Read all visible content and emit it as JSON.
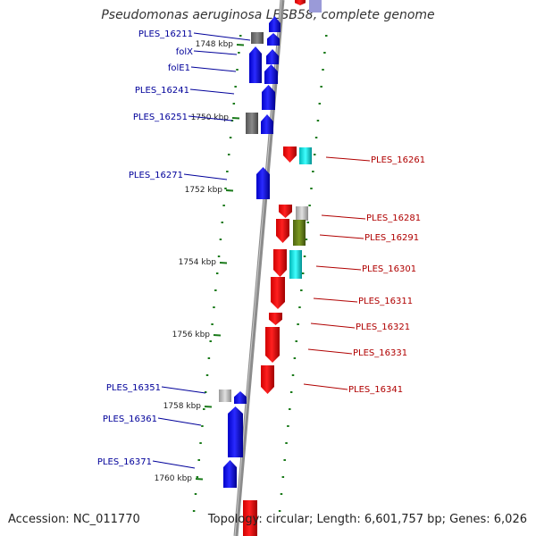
{
  "title": "Pseudomonas aeruginosa LESB58, complete genome",
  "footer": {
    "accession": "Accession: NC_011770",
    "info": "Topology: circular; Length: 6,601,757 bp; Genes: 6,026"
  },
  "colors": {
    "plus_strand": "#0000ff",
    "minus_strand": "#ff0000",
    "backbone": "#8c8c8c",
    "tick": "#1a7a1a",
    "plus_label": "#00009a",
    "minus_label": "#b00000"
  },
  "position_ticks": [
    "1748 kbp",
    "1750 kbp",
    "1752 kbp",
    "1754 kbp",
    "1756 kbp",
    "1758 kbp",
    "1760 kbp"
  ],
  "plus_strand_genes": [
    "PLES_16211",
    "folX",
    "folE1",
    "PLES_16241",
    "PLES_16251",
    "PLES_16271",
    "PLES_16351",
    "PLES_16361",
    "PLES_16371"
  ],
  "minus_strand_genes": [
    "PLES_16261",
    "PLES_16281",
    "PLES_16291",
    "PLES_16301",
    "PLES_16311",
    "PLES_16321",
    "PLES_16331",
    "PLES_16341"
  ]
}
